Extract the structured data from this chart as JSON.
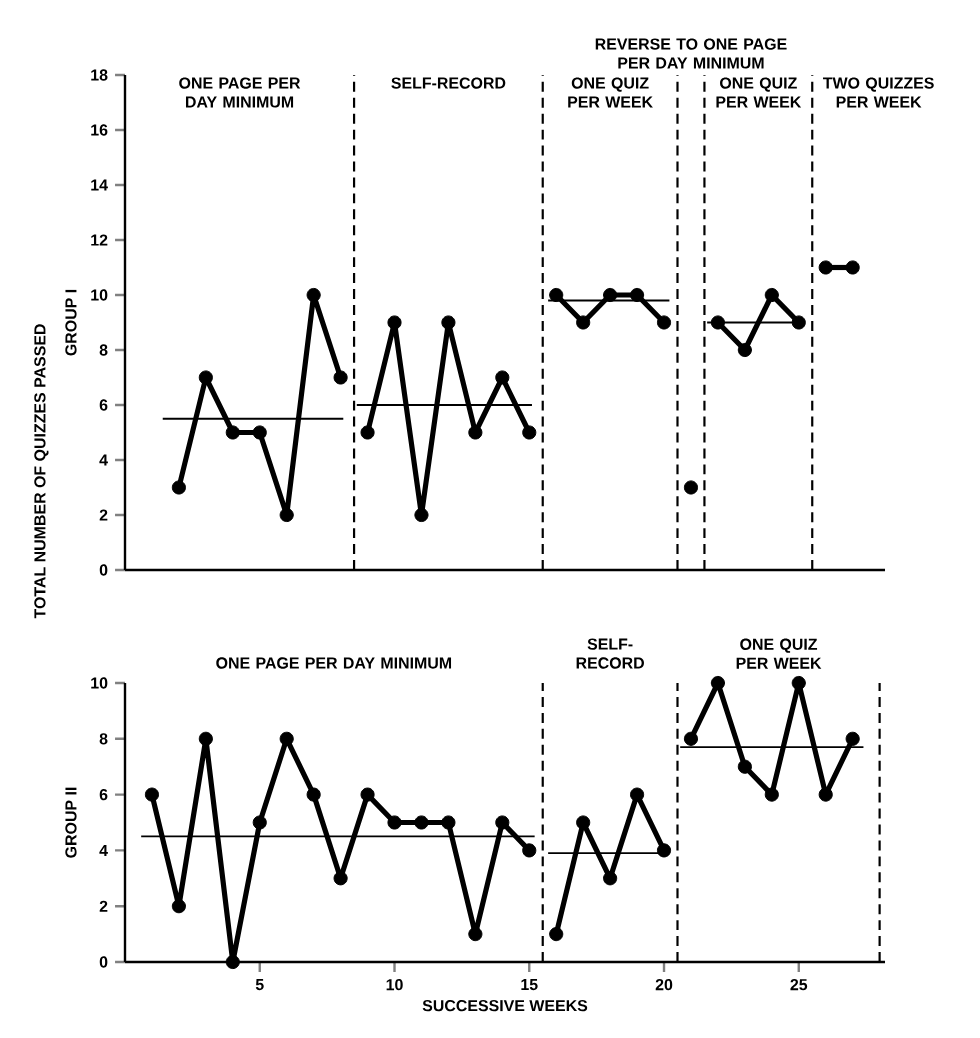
{
  "chart_data": [
    {
      "type": "line",
      "ylabel": "GROUP I",
      "xlim": [
        0,
        28.2
      ],
      "ylim": [
        0,
        18
      ],
      "yticks": [
        0,
        2,
        4,
        6,
        8,
        10,
        12,
        14,
        16,
        18
      ],
      "tick_labels": "y",
      "marker": "circle",
      "series": [
        {
          "x": [
            2,
            3,
            4,
            5,
            6,
            7,
            8
          ],
          "values": [
            3,
            7,
            5,
            5,
            2,
            10,
            7
          ],
          "color": "#000000"
        },
        {
          "x": [
            9,
            10,
            11,
            12,
            13,
            14,
            15
          ],
          "values": [
            5,
            9,
            2,
            9,
            5,
            7,
            5
          ],
          "color": "#000000"
        },
        {
          "x": [
            16,
            17,
            18,
            19,
            20
          ],
          "values": [
            10,
            9,
            10,
            10,
            9
          ],
          "color": "#000000"
        },
        {
          "type": "scatter",
          "x": [
            21
          ],
          "values": [
            3
          ],
          "color": "#000000"
        },
        {
          "x": [
            22,
            23,
            24,
            25
          ],
          "values": [
            9,
            8,
            10,
            9
          ],
          "color": "#000000"
        },
        {
          "x": [
            26,
            27
          ],
          "values": [
            11,
            11
          ],
          "color": "#000000"
        },
        {
          "x": [
            1.4,
            8.1
          ],
          "values": [
            5.5,
            5.5
          ],
          "color": "#000000",
          "marker": "none"
        },
        {
          "x": [
            8.6,
            15.1
          ],
          "values": [
            6,
            6
          ],
          "color": "#000000",
          "marker": "none"
        },
        {
          "x": [
            15.7,
            20.2
          ],
          "values": [
            9.8,
            9.8
          ],
          "color": "#000000",
          "marker": "none"
        },
        {
          "x": [
            21.6,
            25.1
          ],
          "values": [
            9,
            9
          ],
          "color": "#000000",
          "marker": "none"
        }
      ],
      "ref_lines": [
        {
          "axis": "x",
          "value": 8.5,
          "line_style": "dashed"
        },
        {
          "axis": "x",
          "value": 15.5,
          "line_style": "dashed"
        },
        {
          "axis": "x",
          "value": 20.5,
          "line_style": "dashed"
        },
        {
          "axis": "x",
          "value": 21.5,
          "line_style": "dashed"
        },
        {
          "axis": "x",
          "value": 25.5,
          "line_style": "dashed"
        }
      ],
      "annotations": [
        "ONE PAGE PER DAY MINIMUM",
        "SELF-RECORD",
        "ONE QUIZ PER WEEK",
        "REVERSE TO ONE PAGE PER DAY MINIMUM",
        "ONE QUIZ PER WEEK",
        "TWO QUIZZES PER WEEK",
        "TOTAL NUMBER OF QUIZZES PASSED"
      ]
    },
    {
      "type": "line",
      "ylabel": "GROUP II",
      "xlabel": "SUCCESSIVE WEEKS",
      "xlim": [
        0,
        28.2
      ],
      "ylim": [
        0,
        10
      ],
      "xticks": [
        5,
        10,
        15,
        20,
        25
      ],
      "yticks": [
        0,
        2,
        4,
        6,
        8,
        10
      ],
      "marker": "circle",
      "series": [
        {
          "x": [
            1,
            2,
            3,
            4,
            5,
            6,
            7,
            8,
            9,
            10,
            11,
            12,
            13,
            14,
            15
          ],
          "values": [
            6,
            2,
            8,
            0,
            5,
            8,
            6,
            3,
            6,
            5,
            5,
            5,
            1,
            5,
            4
          ],
          "color": "#000000"
        },
        {
          "x": [
            16,
            17,
            18,
            19,
            20
          ],
          "values": [
            1,
            5,
            3,
            6,
            4
          ],
          "color": "#000000"
        },
        {
          "x": [
            21,
            22,
            23,
            24,
            25,
            26,
            27
          ],
          "values": [
            8,
            10,
            7,
            6,
            10,
            6,
            8
          ],
          "color": "#000000"
        },
        {
          "x": [
            0.6,
            15.2
          ],
          "values": [
            4.5,
            4.5
          ],
          "color": "#000000",
          "marker": "none"
        },
        {
          "x": [
            15.7,
            20.0
          ],
          "values": [
            3.9,
            3.9
          ],
          "color": "#000000",
          "marker": "none"
        },
        {
          "x": [
            20.6,
            27.4
          ],
          "values": [
            7.7,
            7.7
          ],
          "color": "#000000",
          "marker": "none"
        }
      ],
      "ref_lines": [
        {
          "axis": "x",
          "value": 15.5,
          "line_style": "dashed"
        },
        {
          "axis": "x",
          "value": 20.5,
          "line_style": "dashed"
        },
        {
          "axis": "x",
          "value": 28,
          "line_style": "dashed"
        }
      ],
      "annotations": [
        "ONE PAGE PER DAY MINIMUM",
        "SELF-RECORD",
        "ONE QUIZ PER WEEK"
      ]
    }
  ]
}
